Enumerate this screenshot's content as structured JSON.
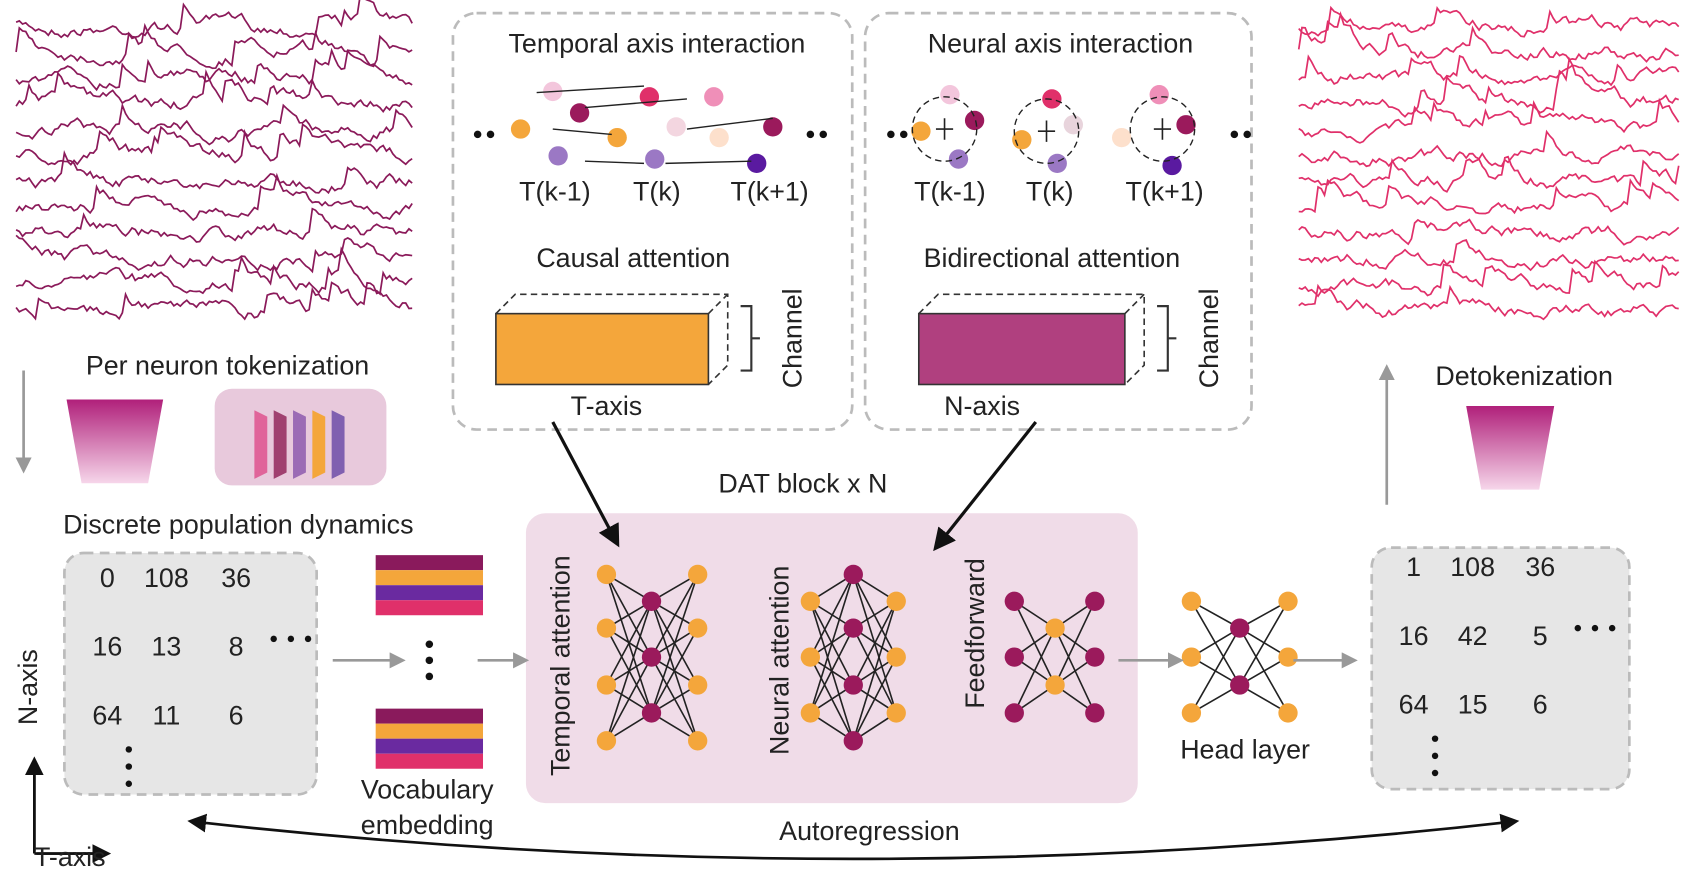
{
  "tokenization": {
    "label": "Per neuron tokenization"
  },
  "detokenization": {
    "label": "Detokenization"
  },
  "temporal_panel": {
    "title": "Temporal axis interaction",
    "tokens": [
      "T(k-1)",
      "T(k)",
      "T(k+1)"
    ],
    "attention": "Causal attention",
    "axis": "T-axis",
    "channel": "Channel"
  },
  "neural_panel": {
    "title": "Neural axis interaction",
    "tokens": [
      "T(k-1)",
      "T(k)",
      "T(k+1)"
    ],
    "attention": "Bidirectional attention",
    "axis": "N-axis",
    "channel": "Channel"
  },
  "dat_block": {
    "title": "DAT block x N",
    "layers": [
      "Temporal attention",
      "Neural attention",
      "Feedforward"
    ]
  },
  "input": {
    "title": "Discrete population dynamics",
    "rows": [
      [
        0,
        108,
        36
      ],
      [
        16,
        13,
        8
      ],
      [
        64,
        11,
        6
      ]
    ]
  },
  "embedding": {
    "label": [
      "Vocabulary",
      "embedding"
    ]
  },
  "head": {
    "label": "Head layer"
  },
  "output": {
    "rows": [
      [
        1,
        108,
        36
      ],
      [
        16,
        42,
        5
      ],
      [
        64,
        15,
        6
      ]
    ]
  },
  "autoregression": {
    "label": "Autoregression"
  },
  "axes": {
    "y": "N-axis",
    "x": "T-axis"
  }
}
